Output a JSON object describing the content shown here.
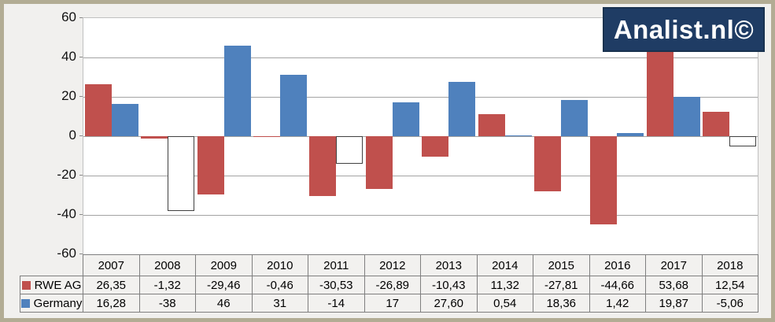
{
  "logo": {
    "text": "Analist.nl©"
  },
  "colors": {
    "background": "#f1f0ee",
    "frame_border": "#b2ac94",
    "plot_border": "#c0c0c0",
    "gridline": "#a3a3a3",
    "rwe_red": "#c0504d",
    "germany_blue": "#4f81bd",
    "negative_invert_fill": "#ffffff",
    "negative_invert_border": "#404040",
    "table_border": "#7f7f7f",
    "logo_bg": "#1f3c64",
    "logo_text": "#ffffff"
  },
  "chart_data": {
    "type": "bar",
    "categories": [
      "2007",
      "2008",
      "2009",
      "2010",
      "2011",
      "2012",
      "2013",
      "2014",
      "2015",
      "2016",
      "2017",
      "2018"
    ],
    "series": [
      {
        "name": "RWE AG",
        "color": "#c0504d",
        "values": [
          26.35,
          -1.32,
          -29.46,
          -0.46,
          -30.53,
          -26.89,
          -10.43,
          11.32,
          -27.81,
          -44.66,
          53.68,
          12.54
        ],
        "labels": [
          "26,35",
          "-1,32",
          "-29,46",
          "-0,46",
          "-30,53",
          "-26,89",
          "-10,43",
          "11,32",
          "-27,81",
          "-44,66",
          "53,68",
          "12,54"
        ],
        "invert_if_negative": false
      },
      {
        "name": "Germany",
        "color": "#4f81bd",
        "values": [
          16.28,
          -38,
          46,
          31,
          -14,
          17,
          27.6,
          0.54,
          18.36,
          1.42,
          19.87,
          -5.06
        ],
        "labels": [
          "16,28",
          "-38",
          "46",
          "31",
          "-14",
          "17",
          "27,60",
          "0,54",
          "18,36",
          "1,42",
          "19,87",
          "-5,06"
        ],
        "invert_if_negative": true
      }
    ],
    "title": "",
    "xlabel": "",
    "ylabel": "",
    "ylim": [
      -60,
      60
    ],
    "ytick_step": 20,
    "yticks": [
      "60",
      "40",
      "20",
      "0",
      "-20",
      "-40",
      "-60"
    ],
    "grid": true,
    "legend_position": "table-left"
  }
}
